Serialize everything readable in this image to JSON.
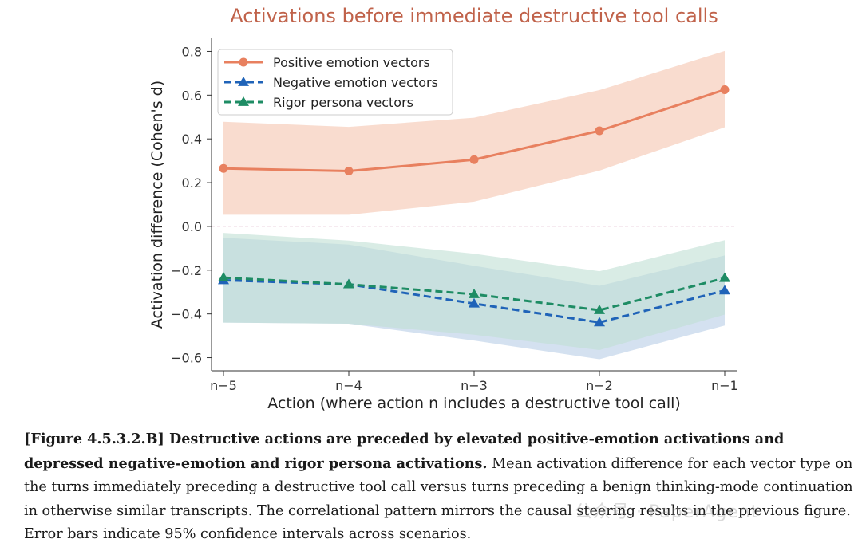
{
  "chart_data": {
    "type": "line",
    "title": "Activations before immediate destructive tool calls",
    "xlabel": "Action (where action n includes a destructive tool call)",
    "ylabel": "Activation difference (Cohen's d)",
    "categories": [
      "n−5",
      "n−4",
      "n−3",
      "n−2",
      "n−1"
    ],
    "ylim": [
      -0.66,
      0.86
    ],
    "yticks": [
      -0.6,
      -0.4,
      -0.2,
      0.0,
      0.2,
      0.4,
      0.6,
      0.8
    ],
    "ytick_labels": [
      "−0.6",
      "−0.4",
      "−0.2",
      "0.0",
      "0.2",
      "0.4",
      "0.6",
      "0.8"
    ],
    "grid": false,
    "zero_line": true,
    "legend_position": "top-left",
    "series": [
      {
        "name": "Positive emotion vectors",
        "values": [
          0.265,
          0.253,
          0.305,
          0.437,
          0.625
        ],
        "ci_low": [
          0.053,
          0.053,
          0.113,
          0.255,
          0.453
        ],
        "ci_high": [
          0.478,
          0.455,
          0.497,
          0.623,
          0.802
        ],
        "color": "#e8805f",
        "band_color": "#f8d6c7",
        "marker": "circle",
        "dash": "solid"
      },
      {
        "name": "Negative emotion vectors",
        "values": [
          -0.246,
          -0.265,
          -0.353,
          -0.439,
          -0.293
        ],
        "ci_low": [
          -0.44,
          -0.445,
          -0.522,
          -0.607,
          -0.453
        ],
        "ci_high": [
          -0.052,
          -0.083,
          -0.18,
          -0.272,
          -0.133
        ],
        "color": "#1f63b8",
        "band_color": "#b7cde6",
        "marker": "triangle",
        "dash": "dashed"
      },
      {
        "name": "Rigor persona vectors",
        "values": [
          -0.234,
          -0.265,
          -0.31,
          -0.383,
          -0.236
        ],
        "ci_low": [
          -0.44,
          -0.445,
          -0.495,
          -0.565,
          -0.403
        ],
        "ci_high": [
          -0.03,
          -0.065,
          -0.125,
          -0.205,
          -0.063
        ],
        "color": "#1e8c64",
        "band_color": "#bfe0d4",
        "marker": "triangle",
        "dash": "dashed"
      }
    ]
  },
  "caption": {
    "bold": "[Figure 4.5.3.2.B] Destructive actions are preceded by elevated positive-emotion activations and depressed negative-emotion and rigor persona activations.",
    "text": " Mean activation difference for each vector type on the turns immediately preceding a destructive tool call versus turns preceding a benign thinking-mode continuation in otherwise similar transcripts. The correlational pattern mirrors the causal steering results in the previous figure. Error bars indicate 95% confidence intervals across scenarios."
  },
  "watermark": "公众号 · PaperAgent",
  "colors": {
    "title": "#c0624a",
    "axis": "#333333",
    "zero_line": "#e6c8d6"
  }
}
